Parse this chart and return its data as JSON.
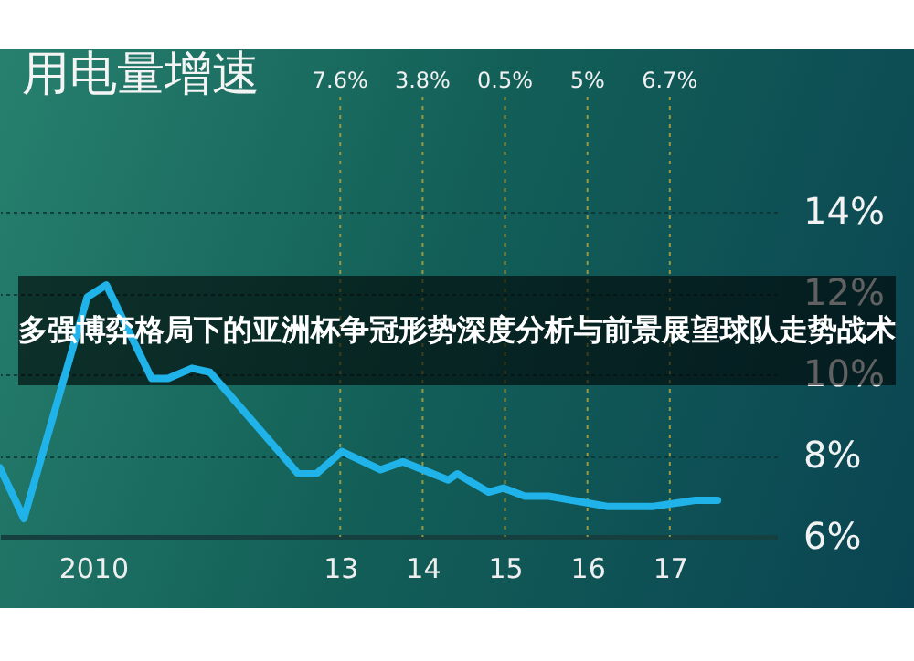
{
  "chart_data": {
    "type": "line",
    "title": "用电量增速",
    "annotations": [
      "多强博弈格局下的亚洲杯争冠形势深度分析与前景展望球队走势战术",
      "7.6%",
      "3.8%",
      "0.5%",
      "5%",
      "6.7%"
    ],
    "x": [
      2008.87,
      2009.16,
      2009.93,
      2010.16,
      2010.71,
      2010.91,
      2011.2,
      2011.42,
      2012.49,
      2012.71,
      2013.02,
      2013.49,
      2013.76,
      2014.31,
      2014.42,
      2014.8,
      2014.98,
      2015.24,
      2015.53,
      2016.24,
      2016.8,
      2017.31,
      2017.58
    ],
    "series": [
      {
        "color": "#1fb3ea",
        "values": [
          7.7,
          6.45,
          11.9,
          12.2,
          9.9,
          9.9,
          10.15,
          10.05,
          7.55,
          7.55,
          8.1,
          7.65,
          7.85,
          7.4,
          7.55,
          7.1,
          7.2,
          7.0,
          7.0,
          6.75,
          6.75,
          6.9,
          6.9
        ]
      }
    ],
    "xlim": [
      2008.87,
      2018.3
    ],
    "ylim": [
      6,
      14
    ],
    "xticks": [
      2010,
      {
        "value": 2013,
        "label": "13"
      },
      {
        "value": 2014,
        "label": "14"
      },
      {
        "value": 2015,
        "label": "15"
      },
      {
        "value": 2016,
        "label": "16"
      },
      {
        "value": 2017,
        "label": "17"
      }
    ],
    "yticks": [
      {
        "value": 6,
        "label": "6%"
      },
      {
        "value": 8,
        "label": "8%"
      },
      {
        "value": 10,
        "label": "10%"
      },
      {
        "value": 12,
        "label": "12%"
      },
      {
        "value": 14,
        "label": "14%"
      }
    ],
    "grid": "y",
    "ref_lines": [
      {
        "axis": "x",
        "value": 2013,
        "color": "#9a9a44",
        "line_style": "dotted"
      },
      {
        "axis": "x",
        "value": 2014,
        "color": "#9a9a44",
        "line_style": "dotted"
      },
      {
        "axis": "x",
        "value": 2015,
        "color": "#9a9a44",
        "line_style": "dotted"
      },
      {
        "axis": "x",
        "value": 2016,
        "color": "#9a9a44",
        "line_style": "dotted"
      },
      {
        "axis": "x",
        "value": 2017,
        "color": "#9a9a44",
        "line_style": "dotted"
      }
    ]
  }
}
